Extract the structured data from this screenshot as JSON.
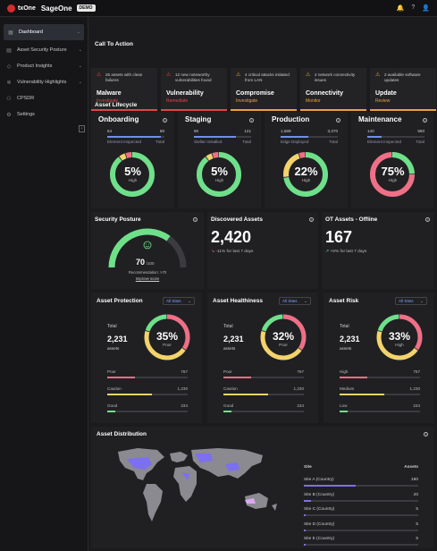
{
  "header": {
    "brand": "txOne",
    "product": "SageOne",
    "badge": "DEMO",
    "icons": [
      "bell-icon",
      "help-icon",
      "user-icon"
    ]
  },
  "sidebar": {
    "items": [
      {
        "label": "Dashboard",
        "icon": "dashboard-icon"
      },
      {
        "label": "Asset Security Posture",
        "icon": "posture-icon"
      },
      {
        "label": "Product Insights",
        "icon": "insights-icon"
      },
      {
        "label": "Vulnerability Highlights",
        "icon": "vulnerability-icon"
      },
      {
        "label": "CPSDR",
        "icon": "cpsdr-icon"
      },
      {
        "label": "Settings",
        "icon": "gear-icon"
      }
    ],
    "collapse": "‹"
  },
  "cta": {
    "title": "Call To Action",
    "cards": [
      {
        "desc": "25 assets with clean failures",
        "title": "Malware",
        "link": "Investigate",
        "color": "#e2454b"
      },
      {
        "desc": "12 new noteworthy vulnerabilities found",
        "title": "Vulnerability",
        "link": "Remediate",
        "color": "#e2454b"
      },
      {
        "desc": "4 critical attacks initiated from LAN",
        "title": "Compromise",
        "link": "Investigate",
        "color": "#e8a33a"
      },
      {
        "desc": "2 network connectivity issues",
        "title": "Connectivity",
        "link": "Monitor",
        "color": "#e8a33a"
      },
      {
        "desc": "2 available software updates",
        "title": "Update",
        "link": "Review",
        "color": "#e8a33a"
      }
    ]
  },
  "lifecycle": {
    "title": "Asset Lifecycle",
    "stages": [
      {
        "title": "Onboarding",
        "n1": "64",
        "n2": "69",
        "l1": "Element Inspected",
        "l2": "Total",
        "fraction": 0.93,
        "pct": "5%",
        "level": "High"
      },
      {
        "title": "Staging",
        "n1": "90",
        "n2": "121",
        "l1": "Stellar Installed",
        "l2": "Total",
        "fraction": 0.74,
        "pct": "5%",
        "level": "High"
      },
      {
        "title": "Production",
        "n1": "1,589",
        "n2": "3,270",
        "l1": "Edge Deployed",
        "l2": "Total",
        "fraction": 0.49,
        "pct": "22%",
        "level": "High"
      },
      {
        "title": "Maintenance",
        "n1": "140",
        "n2": "560",
        "l1": "Element Inspected",
        "l2": "Total",
        "fraction": 0.25,
        "pct": "75%",
        "level": "High"
      }
    ]
  },
  "posture": {
    "title": "Security Posture",
    "score": "70",
    "max": "/100",
    "recommendation": "Recommendation: >70",
    "link": "Improve score",
    "value": 0.7
  },
  "discovered": {
    "title": "Discovered Assets",
    "value": "2,420",
    "trend": "-11% for last 7 days"
  },
  "offline": {
    "title": "OT Assets - Offline",
    "value": "167",
    "trend": "+8% for last 7 days"
  },
  "metric_panels": [
    {
      "title": "Asset Protection",
      "filter": "All Sites",
      "total_label": "Total",
      "total": "2,231",
      "unit": "assets",
      "pct": "35%",
      "level": "Poor",
      "rows": [
        {
          "label": "Poor",
          "value": "767",
          "fraction": 0.34,
          "color": "#ef6f87"
        },
        {
          "label": "Caution",
          "value": "1,230",
          "fraction": 0.55,
          "color": "#f3d36b"
        },
        {
          "label": "Good",
          "value": "234",
          "fraction": 0.1,
          "color": "#6fe08a"
        }
      ]
    },
    {
      "title": "Asset Healthiness",
      "filter": "All Sites",
      "total_label": "Total",
      "total": "2,231",
      "unit": "assets",
      "pct": "32%",
      "level": "Poor",
      "rows": [
        {
          "label": "Poor",
          "value": "767",
          "fraction": 0.34,
          "color": "#ef6f87"
        },
        {
          "label": "Caution",
          "value": "1,230",
          "fraction": 0.55,
          "color": "#f3d36b"
        },
        {
          "label": "Good",
          "value": "234",
          "fraction": 0.1,
          "color": "#6fe08a"
        }
      ]
    },
    {
      "title": "Asset Risk",
      "filter": "All Sites",
      "total_label": "Total",
      "total": "2,231",
      "unit": "assets",
      "pct": "33%",
      "level": "High",
      "rows": [
        {
          "label": "High",
          "value": "767",
          "fraction": 0.34,
          "color": "#ef6f87"
        },
        {
          "label": "Medium",
          "value": "1,230",
          "fraction": 0.55,
          "color": "#f3d36b"
        },
        {
          "label": "Low",
          "value": "234",
          "fraction": 0.1,
          "color": "#6fe08a"
        }
      ]
    }
  ],
  "distribution": {
    "title": "Asset Distribution",
    "col_site": "Site",
    "col_assets": "Assets",
    "sites": [
      {
        "site": "Site A (Country)",
        "assets": "180",
        "fraction": 0.9
      },
      {
        "site": "Site B (Country)",
        "assets": "20",
        "fraction": 0.12
      },
      {
        "site": "Site C (Country)",
        "assets": "5",
        "fraction": 0.03
      },
      {
        "site": "Site D (Country)",
        "assets": "5",
        "fraction": 0.03
      },
      {
        "site": "Site E (Country)",
        "assets": "5",
        "fraction": 0.03
      }
    ]
  }
}
